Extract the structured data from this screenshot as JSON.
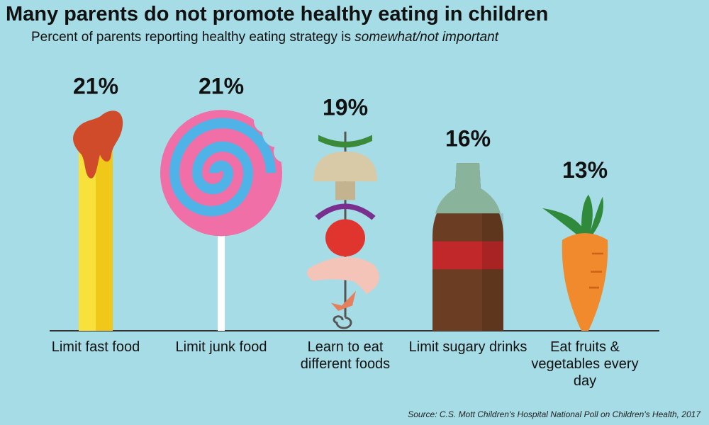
{
  "chart_data": {
    "type": "pictogram",
    "title": "Many parents do not promote healthy eating in children",
    "subtitle": [
      "Percent of parents reporting healthy eating strategy is",
      "somewhat/not important"
    ],
    "categories": [
      "Limit fast food",
      "Limit junk food",
      "Learn to eat different foods",
      "Limit sugary drinks",
      "Eat fruits & vegetables every day"
    ],
    "values": [
      21,
      21,
      19,
      16,
      13
    ],
    "value_labels": [
      "21%",
      "21%",
      "19%",
      "16%",
      "13%"
    ],
    "source": "Source: C.S. Mott Children's Hospital National Poll on Children's Health, 2017"
  }
}
